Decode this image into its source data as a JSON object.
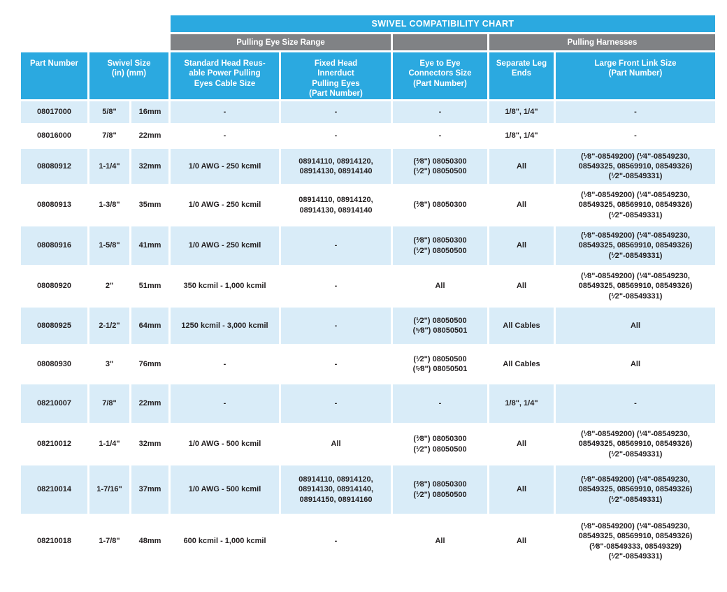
{
  "title": "SWIVEL COMPATIBILITY CHART",
  "groups": {
    "pulling_eye_size_range": "Pulling Eye Size Range",
    "pulling_harnesses": "Pulling Harnesses"
  },
  "columns": {
    "part_number": "Part Number",
    "swivel_size": "Swivel Size\n(in) (mm)",
    "standard_head": "Standard Head Reus-\nable Power Pulling\nEyes Cable Size",
    "fixed_head": "Fixed Head\nInnerduct\nPulling Eyes\n(Part Number)",
    "eye_to_eye": "Eye to Eye\nConnectors Size\n(Part Number)",
    "separate_leg_ends": "Separate Leg\nEnds",
    "large_front_link": "Large Front Link Size\n(Part Number)"
  },
  "colors": {
    "header_blue": "#2BA9E0",
    "band_gray": "#808285",
    "row_light_blue": "#D9ECF8",
    "text_dark": "#231F20"
  },
  "rows": [
    [
      "08017000",
      "5/8\"",
      "16mm",
      "-",
      "-",
      "-",
      "1/8\", 1/4\"",
      "-"
    ],
    [
      "08016000",
      "7/8\"",
      "22mm",
      "-",
      "-",
      "-",
      "1/8\", 1/4\"",
      "-"
    ],
    [
      "08080912",
      "1-1/4\"",
      "32mm",
      "1/0 AWG - 250 kcmil",
      "08914110, 08914120,\n08914130, 08914140",
      "(³⁄8\") 08050300\n(¹⁄2\") 08050500",
      "All",
      "(¹⁄8\"-08549200) (¹⁄4\"-08549230,\n08549325, 08569910, 08549326)\n(¹⁄2\"-08549331)"
    ],
    [
      "08080913",
      "1-3/8\"",
      "35mm",
      "1/0 AWG - 250 kcmil",
      "08914110, 08914120,\n08914130, 08914140",
      "(³⁄8\") 08050300",
      "All",
      "(¹⁄8\"-08549200) (¹⁄4\"-08549230,\n08549325, 08569910, 08549326)\n(¹⁄2\"-08549331)"
    ],
    [
      "08080916",
      "1-5/8\"",
      "41mm",
      "1/0 AWG - 250 kcmil",
      "-",
      "(³⁄8\") 08050300\n(¹⁄2\") 08050500",
      "All",
      "(¹⁄8\"-08549200) (¹⁄4\"-08549230,\n08549325, 08569910, 08549326)\n(¹⁄2\"-08549331)"
    ],
    [
      "08080920",
      "2\"",
      "51mm",
      "350 kcmil - 1,000 kcmil",
      "-",
      "All",
      "All",
      "(¹⁄8\"-08549200) (¹⁄4\"-08549230,\n08549325, 08569910, 08549326)\n(¹⁄2\"-08549331)"
    ],
    [
      "08080925",
      "2-1/2\"",
      "64mm",
      "1250 kcmil - 3,000 kcmil",
      "-",
      "(¹⁄2\") 08050500\n(⁵⁄8\") 08050501",
      "All Cables",
      "All"
    ],
    [
      "08080930",
      "3\"",
      "76mm",
      "-",
      "-",
      "(¹⁄2\") 08050500\n(⁵⁄8\") 08050501",
      "All Cables",
      "All"
    ],
    [
      "08210007",
      "7/8\"",
      "22mm",
      "-",
      "-",
      "-",
      "1/8\", 1/4\"",
      "-"
    ],
    [
      "08210012",
      "1-1/4\"",
      "32mm",
      "1/0 AWG - 500 kcmil",
      "All",
      "(³⁄8\") 08050300\n(¹⁄2\") 08050500",
      "All",
      "(¹⁄8\"-08549200) (¹⁄4\"-08549230,\n08549325, 08569910, 08549326)\n(¹⁄2\"-08549331)"
    ],
    [
      "08210014",
      "1-7/16\"",
      "37mm",
      "1/0 AWG - 500 kcmil",
      "08914110, 08914120,\n08914130, 08914140,\n08914150, 08914160",
      "(³⁄8\") 08050300\n(¹⁄2\") 08050500",
      "All",
      "(¹⁄8\"-08549200) (¹⁄4\"-08549230,\n08549325, 08569910, 08549326)\n(¹⁄2\"-08549331)"
    ],
    [
      "08210018",
      "1-7/8\"",
      "48mm",
      "600 kcmil - 1,000 kcmil",
      "-",
      "All",
      "All",
      "(¹⁄8\"-08549200) (¹⁄4\"-08549230,\n08549325, 08569910, 08549326)\n(³⁄8\"-08549333, 08549329)\n(¹⁄2\"-08549331)"
    ]
  ]
}
